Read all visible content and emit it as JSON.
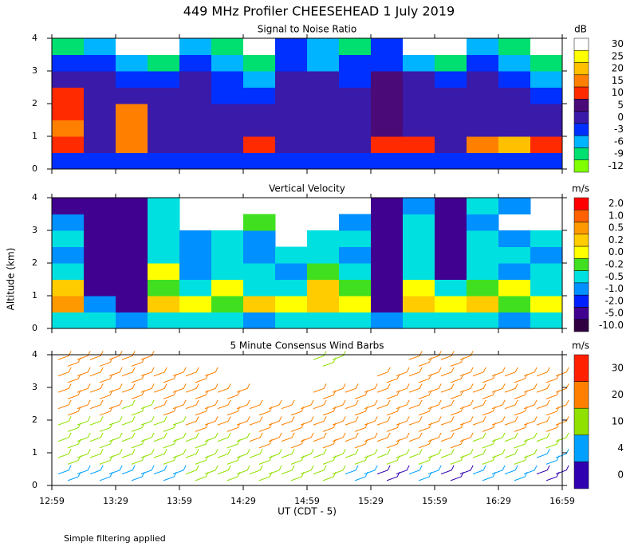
{
  "title": "449 MHz Profiler CHEESEHEAD  1 July 2019",
  "ylabel": "Altitude (km)",
  "xlabel": "UT  (CDT - 5)",
  "footnote": "Simple filtering applied",
  "chart_data": [
    {
      "type": "heatmap",
      "title": "Signal to Noise Ratio",
      "unit": "dB",
      "ylim": [
        0,
        4
      ],
      "yticks": [
        0,
        1,
        2,
        3,
        4
      ],
      "levels": [
        30,
        25,
        20,
        15,
        10,
        5,
        0,
        -3,
        -6,
        -9,
        -12
      ],
      "colors": [
        "#ffffff",
        "#ffff00",
        "#ffc000",
        "#ff8000",
        "#ff2a00",
        "#4a0a78",
        "#3a1aa8",
        "#0030ff",
        "#00b4ff",
        "#00e070",
        "#80ff00"
      ],
      "z": [
        [
          -3,
          -3,
          -3,
          -3,
          -3,
          -3,
          -3,
          -3,
          -3,
          -3,
          -3,
          -3,
          -3,
          -3,
          -3,
          -3
        ],
        [
          12,
          4,
          16,
          3,
          3,
          3,
          12,
          3,
          3,
          3,
          12,
          12,
          3,
          18,
          20,
          12
        ],
        [
          16,
          3,
          18,
          3,
          3,
          3,
          2,
          3,
          3,
          3,
          5,
          3,
          3,
          3,
          3,
          3
        ],
        [
          14,
          3,
          18,
          2,
          3,
          2,
          0,
          2,
          2,
          0,
          8,
          3,
          2,
          3,
          2,
          0
        ],
        [
          12,
          3,
          0,
          2,
          0,
          -3,
          -3,
          0,
          2,
          0,
          7,
          2,
          0,
          0,
          0,
          -3
        ],
        [
          0,
          0,
          -3,
          -3,
          0,
          -3,
          -6,
          0,
          0,
          -3,
          5,
          0,
          -3,
          0,
          -3,
          -6
        ],
        [
          -3,
          -3,
          -6,
          -9,
          -3,
          -6,
          -9,
          -3,
          -6,
          -3,
          -3,
          -6,
          -9,
          -3,
          -6,
          -9
        ],
        [
          -9,
          -6,
          30,
          30,
          -6,
          -9,
          30,
          -3,
          -6,
          -9,
          -3,
          30,
          30,
          -6,
          -9,
          30
        ]
      ]
    },
    {
      "type": "heatmap",
      "title": "Vertical Velocity",
      "unit": "m/s",
      "ylim": [
        0,
        4
      ],
      "yticks": [
        0,
        1,
        2,
        3,
        4
      ],
      "levels": [
        {
          "value": 2,
          "label": "2.0"
        },
        {
          "value": 1,
          "label": "1.0"
        },
        0.5,
        0.2,
        {
          "value": 0,
          "label": "0.0"
        },
        -0.2,
        -0.5,
        {
          "value": -1,
          "label": "-1.0"
        },
        {
          "value": -2,
          "label": "-2.0"
        },
        {
          "value": -5,
          "label": "-5.0"
        },
        {
          "value": -10,
          "label": "-10.0"
        }
      ],
      "colors": [
        "#ff0000",
        "#ff6000",
        "#ff9900",
        "#ffcc00",
        "#ffff00",
        "#40e020",
        "#00e0e0",
        "#0090ff",
        "#0020ff",
        "#400090",
        "#300040"
      ],
      "z": [
        [
          -0.3,
          -0.3,
          -0.6,
          -0.3,
          -0.3,
          -0.3,
          -0.6,
          -0.3,
          -0.3,
          -0.3,
          -0.6,
          -0.3,
          -0.3,
          -0.3,
          -0.6,
          -0.3
        ],
        [
          0.6,
          -0.6,
          -5,
          0.3,
          0.1,
          -0.1,
          0.3,
          0.1,
          0.3,
          0.1,
          -5,
          0.3,
          0.1,
          0.3,
          -0.1,
          0.1
        ],
        [
          0.3,
          -5,
          -5,
          -0.1,
          -0.3,
          0.1,
          -0.3,
          -0.3,
          0.3,
          -0.1,
          -2.5,
          0.1,
          -0.3,
          -0.1,
          0.1,
          -0.3
        ],
        [
          -0.3,
          -5,
          -5,
          0.1,
          -0.6,
          -0.3,
          -0.3,
          -0.6,
          -0.1,
          -0.3,
          -5,
          -0.3,
          -2.5,
          -0.3,
          -0.6,
          -0.3
        ],
        [
          -0.6,
          -5,
          -5,
          -0.3,
          -0.6,
          -0.3,
          -0.6,
          -0.3,
          -0.3,
          -0.6,
          -5,
          -0.3,
          -5,
          -0.3,
          -0.3,
          -0.6
        ],
        [
          -0.3,
          -5,
          -5,
          -0.3,
          -0.6,
          -0.3,
          -0.6,
          null,
          -0.3,
          -0.3,
          -2.5,
          -0.3,
          -5,
          -0.3,
          -0.6,
          -0.3
        ],
        [
          -0.6,
          -5,
          -5,
          -0.3,
          null,
          null,
          -0.1,
          null,
          null,
          -0.6,
          -5,
          -0.3,
          -5,
          -0.6,
          null,
          null
        ],
        [
          -5,
          -5,
          -5,
          -0.3,
          null,
          null,
          null,
          null,
          null,
          null,
          -5,
          -0.6,
          -5,
          -0.3,
          -0.6,
          null
        ]
      ]
    },
    {
      "type": "barbs",
      "title": "5 Minute Consensus Wind Barbs",
      "unit": "m/s",
      "ylim": [
        0,
        4
      ],
      "yticks": [
        0,
        1,
        2,
        3,
        4
      ],
      "xticks": [
        "12:59",
        "13:29",
        "13:59",
        "14:29",
        "14:59",
        "15:29",
        "15:59",
        "16:29",
        "16:59"
      ],
      "levels": [
        30,
        20,
        10,
        4,
        0
      ],
      "colors": [
        "#ff2000",
        "#ff8000",
        "#90e000",
        "#00a0ff",
        "#3000b0"
      ],
      "z": [
        [
          8,
          6,
          4,
          8,
          10,
          10,
          10,
          10,
          10,
          8,
          3,
          4,
          3,
          8,
          6,
          2
        ],
        [
          10,
          10,
          10,
          12,
          14,
          14,
          14,
          14,
          12,
          12,
          12,
          12,
          12,
          12,
          10,
          8
        ],
        [
          14,
          14,
          14,
          16,
          18,
          18,
          20,
          20,
          20,
          20,
          20,
          20,
          20,
          18,
          18,
          16
        ],
        [
          18,
          18,
          18,
          18,
          20,
          20,
          20,
          22,
          22,
          24,
          24,
          22,
          22,
          22,
          20,
          20
        ],
        [
          20,
          20,
          18,
          20,
          20,
          22,
          22,
          20,
          24,
          25,
          25,
          25,
          24,
          24,
          22,
          20
        ],
        [
          22,
          22,
          20,
          20,
          22,
          22,
          null,
          null,
          22,
          22,
          24,
          24,
          22,
          22,
          22,
          22
        ],
        [
          22,
          24,
          22,
          22,
          22,
          null,
          null,
          null,
          null,
          null,
          22,
          24,
          22,
          20,
          24,
          22
        ],
        [
          22,
          22,
          22,
          null,
          null,
          null,
          null,
          null,
          12,
          null,
          null,
          22,
          22,
          null,
          null,
          null
        ]
      ]
    }
  ]
}
